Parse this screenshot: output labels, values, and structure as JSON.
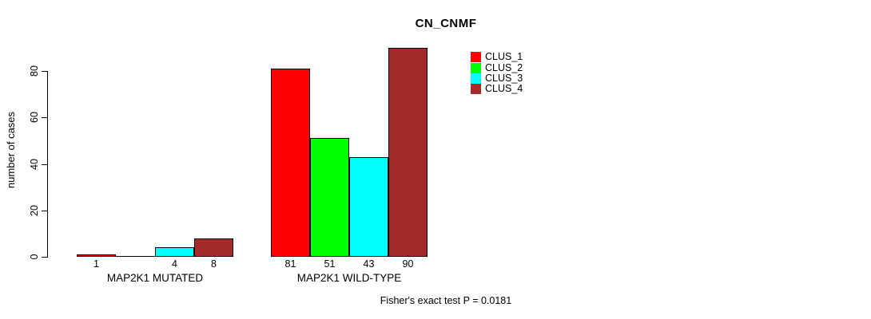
{
  "page": {
    "background": "#FFFFFF"
  },
  "chart_data": {
    "type": "bar",
    "title": "CN_CNMF",
    "ylabel": "number of cases",
    "xlabel": "",
    "yticks": [
      0,
      20,
      40,
      60,
      80
    ],
    "ylim": [
      0,
      90
    ],
    "grid": false,
    "legend_position": "top-right",
    "groups": [
      "MAP2K1 MUTATED",
      "MAP2K1 WILD-TYPE"
    ],
    "series": [
      {
        "name": "CLUS_1",
        "color": "#FF0000",
        "values": [
          1,
          81
        ]
      },
      {
        "name": "CLUS_2",
        "color": "#00FF00",
        "values": [
          0,
          51
        ]
      },
      {
        "name": "CLUS_3",
        "color": "#00FFFF",
        "values": [
          4,
          43
        ]
      },
      {
        "name": "CLUS_4",
        "color": "#A52A2A",
        "values": [
          8,
          90
        ]
      }
    ],
    "bar_value_labels": [
      [
        "1",
        "",
        "4",
        "8"
      ],
      [
        "81",
        "51",
        "43",
        "90"
      ]
    ],
    "annotation": "Fisher's exact test P = 0.0181"
  }
}
